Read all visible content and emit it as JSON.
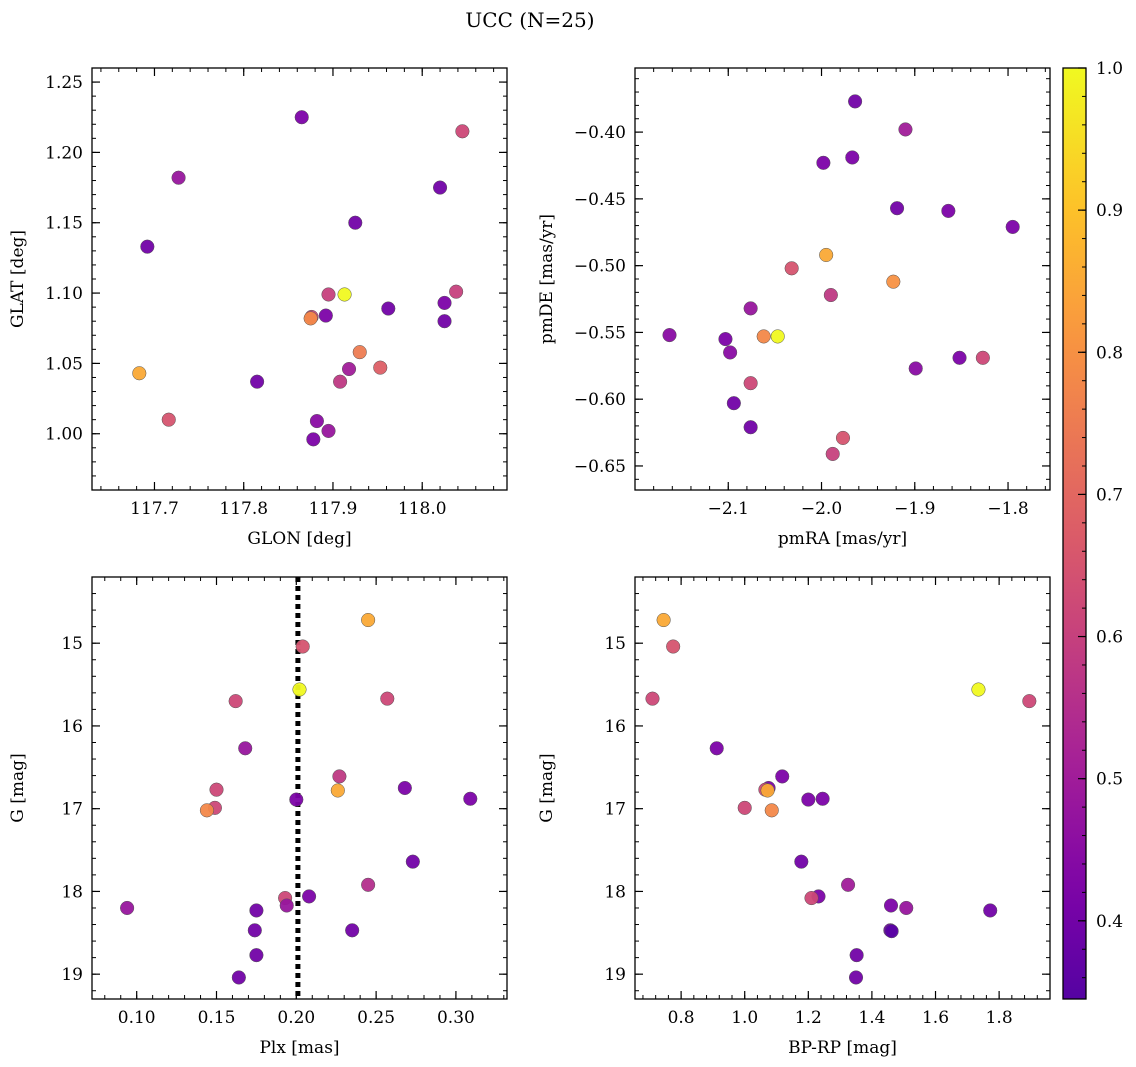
{
  "figure": {
    "title": "UCC (N=25)",
    "colormap": "plasma",
    "colorbar": {
      "range": [
        0.345,
        1.0
      ],
      "ticks": [
        0.4,
        0.5,
        0.6,
        0.7,
        0.8,
        0.9,
        1.0
      ],
      "tick_labels": [
        "0.4",
        "0.5",
        "0.6",
        "0.7",
        "0.8",
        "0.9",
        "1.0"
      ]
    }
  },
  "chart_data": [
    {
      "type": "scatter",
      "xlabel": "GLON [deg]",
      "ylabel": "GLAT [deg]",
      "xlim": [
        117.63,
        118.095
      ],
      "ylim": [
        0.96,
        1.26
      ],
      "y_inverted": false,
      "xticks": [
        117.7,
        117.8,
        117.9,
        118.0
      ],
      "xtick_labels": [
        "117.7",
        "117.8",
        "117.9",
        "118.0"
      ],
      "yticks": [
        1.0,
        1.05,
        1.1,
        1.15,
        1.2,
        1.25
      ],
      "ytick_labels": [
        "1.00",
        "1.05",
        "1.10",
        "1.15",
        "1.20",
        "1.25"
      ],
      "points": [
        {
          "x": 117.865,
          "y": 1.225,
          "c": 0.42
        },
        {
          "x": 118.045,
          "y": 1.215,
          "c": 0.62
        },
        {
          "x": 117.727,
          "y": 1.182,
          "c": 0.48
        },
        {
          "x": 118.02,
          "y": 1.175,
          "c": 0.4
        },
        {
          "x": 117.925,
          "y": 1.15,
          "c": 0.4
        },
        {
          "x": 117.692,
          "y": 1.133,
          "c": 0.4
        },
        {
          "x": 117.895,
          "y": 1.099,
          "c": 0.6
        },
        {
          "x": 117.913,
          "y": 1.099,
          "c": 1.0
        },
        {
          "x": 118.038,
          "y": 1.101,
          "c": 0.6
        },
        {
          "x": 118.025,
          "y": 1.093,
          "c": 0.42
        },
        {
          "x": 117.962,
          "y": 1.089,
          "c": 0.4
        },
        {
          "x": 117.892,
          "y": 1.084,
          "c": 0.42
        },
        {
          "x": 117.876,
          "y": 1.083,
          "c": 0.62
        },
        {
          "x": 117.875,
          "y": 1.082,
          "c": 0.78
        },
        {
          "x": 118.025,
          "y": 1.08,
          "c": 0.4
        },
        {
          "x": 117.93,
          "y": 1.058,
          "c": 0.75
        },
        {
          "x": 117.918,
          "y": 1.046,
          "c": 0.5
        },
        {
          "x": 117.953,
          "y": 1.047,
          "c": 0.68
        },
        {
          "x": 117.683,
          "y": 1.043,
          "c": 0.85
        },
        {
          "x": 117.908,
          "y": 1.037,
          "c": 0.58
        },
        {
          "x": 117.815,
          "y": 1.037,
          "c": 0.4
        },
        {
          "x": 117.716,
          "y": 1.01,
          "c": 0.65
        },
        {
          "x": 117.882,
          "y": 1.009,
          "c": 0.45
        },
        {
          "x": 117.895,
          "y": 1.002,
          "c": 0.48
        },
        {
          "x": 117.878,
          "y": 0.996,
          "c": 0.42
        }
      ]
    },
    {
      "type": "scatter",
      "xlabel": "pmRA [mas/yr]",
      "ylabel": "pmDE [mas/yr]",
      "xlim": [
        -2.2,
        -1.755
      ],
      "ylim": [
        -0.668,
        -0.352
      ],
      "y_inverted": false,
      "xticks": [
        -2.1,
        -2.0,
        -1.9,
        -1.8
      ],
      "xtick_labels": [
        "−2.1",
        "−2.0",
        "−1.9",
        "−1.8"
      ],
      "yticks": [
        -0.65,
        -0.6,
        -0.55,
        -0.5,
        -0.45,
        -0.4
      ],
      "ytick_labels": [
        "−0.65",
        "−0.60",
        "−0.55",
        "−0.50",
        "−0.45",
        "−0.40"
      ],
      "points": [
        {
          "x": -1.964,
          "y": -0.377,
          "c": 0.4
        },
        {
          "x": -1.91,
          "y": -0.398,
          "c": 0.5
        },
        {
          "x": -1.998,
          "y": -0.423,
          "c": 0.42
        },
        {
          "x": -1.967,
          "y": -0.419,
          "c": 0.42
        },
        {
          "x": -1.919,
          "y": -0.457,
          "c": 0.4
        },
        {
          "x": -1.864,
          "y": -0.459,
          "c": 0.42
        },
        {
          "x": -1.795,
          "y": -0.471,
          "c": 0.42
        },
        {
          "x": -1.995,
          "y": -0.492,
          "c": 0.85
        },
        {
          "x": -2.032,
          "y": -0.502,
          "c": 0.65
        },
        {
          "x": -1.923,
          "y": -0.512,
          "c": 0.8
        },
        {
          "x": -1.99,
          "y": -0.522,
          "c": 0.58
        },
        {
          "x": -2.076,
          "y": -0.532,
          "c": 0.48
        },
        {
          "x": -2.163,
          "y": -0.552,
          "c": 0.45
        },
        {
          "x": -2.103,
          "y": -0.555,
          "c": 0.42
        },
        {
          "x": -2.062,
          "y": -0.553,
          "c": 0.78
        },
        {
          "x": -2.047,
          "y": -0.553,
          "c": 1.0
        },
        {
          "x": -2.098,
          "y": -0.565,
          "c": 0.45
        },
        {
          "x": -1.852,
          "y": -0.569,
          "c": 0.42
        },
        {
          "x": -1.827,
          "y": -0.569,
          "c": 0.62
        },
        {
          "x": -1.899,
          "y": -0.577,
          "c": 0.45
        },
        {
          "x": -2.076,
          "y": -0.588,
          "c": 0.62
        },
        {
          "x": -2.094,
          "y": -0.603,
          "c": 0.4
        },
        {
          "x": -2.076,
          "y": -0.621,
          "c": 0.4
        },
        {
          "x": -1.977,
          "y": -0.629,
          "c": 0.65
        },
        {
          "x": -1.988,
          "y": -0.641,
          "c": 0.6
        }
      ]
    },
    {
      "type": "scatter",
      "xlabel": "Plx [mas]",
      "ylabel": "G [mag]",
      "xlim": [
        0.072,
        0.332
      ],
      "ylim": [
        14.2,
        19.3
      ],
      "y_inverted": true,
      "vline": {
        "x": 0.201,
        "style": "dotted"
      },
      "xticks": [
        0.1,
        0.15,
        0.2,
        0.25,
        0.3
      ],
      "xtick_labels": [
        "0.10",
        "0.15",
        "0.20",
        "0.25",
        "0.30"
      ],
      "yticks": [
        15,
        16,
        17,
        18,
        19
      ],
      "ytick_labels": [
        "15",
        "16",
        "17",
        "18",
        "19"
      ],
      "points": [
        {
          "x": 0.245,
          "y": 14.72,
          "c": 0.85
        },
        {
          "x": 0.204,
          "y": 15.04,
          "c": 0.65
        },
        {
          "x": 0.202,
          "y": 15.56,
          "c": 1.0
        },
        {
          "x": 0.162,
          "y": 15.7,
          "c": 0.62
        },
        {
          "x": 0.257,
          "y": 15.67,
          "c": 0.62
        },
        {
          "x": 0.168,
          "y": 16.27,
          "c": 0.48
        },
        {
          "x": 0.227,
          "y": 16.61,
          "c": 0.58
        },
        {
          "x": 0.268,
          "y": 16.75,
          "c": 0.42
        },
        {
          "x": 0.15,
          "y": 16.77,
          "c": 0.62
        },
        {
          "x": 0.226,
          "y": 16.78,
          "c": 0.85
        },
        {
          "x": 0.309,
          "y": 16.88,
          "c": 0.42
        },
        {
          "x": 0.2,
          "y": 16.89,
          "c": 0.42
        },
        {
          "x": 0.149,
          "y": 16.99,
          "c": 0.62
        },
        {
          "x": 0.144,
          "y": 17.02,
          "c": 0.78
        },
        {
          "x": 0.273,
          "y": 17.64,
          "c": 0.4
        },
        {
          "x": 0.245,
          "y": 17.92,
          "c": 0.55
        },
        {
          "x": 0.208,
          "y": 18.06,
          "c": 0.42
        },
        {
          "x": 0.193,
          "y": 18.08,
          "c": 0.62
        },
        {
          "x": 0.194,
          "y": 18.17,
          "c": 0.48
        },
        {
          "x": 0.094,
          "y": 18.2,
          "c": 0.48
        },
        {
          "x": 0.175,
          "y": 18.23,
          "c": 0.4
        },
        {
          "x": 0.174,
          "y": 18.47,
          "c": 0.4
        },
        {
          "x": 0.235,
          "y": 18.47,
          "c": 0.4
        },
        {
          "x": 0.175,
          "y": 18.77,
          "c": 0.4
        },
        {
          "x": 0.164,
          "y": 19.04,
          "c": 0.4
        }
      ]
    },
    {
      "type": "scatter",
      "xlabel": "BP-RP [mag]",
      "ylabel": "G [mag]",
      "xlim": [
        0.655,
        1.96
      ],
      "ylim": [
        14.2,
        19.3
      ],
      "y_inverted": true,
      "xticks": [
        0.8,
        1.0,
        1.2,
        1.4,
        1.6,
        1.8
      ],
      "xtick_labels": [
        "0.8",
        "1.0",
        "1.2",
        "1.4",
        "1.6",
        "1.8"
      ],
      "yticks": [
        15,
        16,
        17,
        18,
        19
      ],
      "ytick_labels": [
        "15",
        "16",
        "17",
        "18",
        "19"
      ],
      "points": [
        {
          "x": 0.745,
          "y": 14.72,
          "c": 0.85
        },
        {
          "x": 0.775,
          "y": 15.04,
          "c": 0.65
        },
        {
          "x": 1.735,
          "y": 15.56,
          "c": 1.0
        },
        {
          "x": 0.71,
          "y": 15.67,
          "c": 0.62
        },
        {
          "x": 1.895,
          "y": 15.7,
          "c": 0.62
        },
        {
          "x": 0.912,
          "y": 16.27,
          "c": 0.42
        },
        {
          "x": 1.118,
          "y": 16.61,
          "c": 0.42
        },
        {
          "x": 1.075,
          "y": 16.75,
          "c": 0.42
        },
        {
          "x": 1.065,
          "y": 16.77,
          "c": 0.62
        },
        {
          "x": 1.072,
          "y": 16.78,
          "c": 0.85
        },
        {
          "x": 1.245,
          "y": 16.88,
          "c": 0.42
        },
        {
          "x": 1.2,
          "y": 16.89,
          "c": 0.42
        },
        {
          "x": 1.0,
          "y": 16.99,
          "c": 0.62
        },
        {
          "x": 1.085,
          "y": 17.02,
          "c": 0.78
        },
        {
          "x": 1.178,
          "y": 17.64,
          "c": 0.4
        },
        {
          "x": 1.325,
          "y": 17.92,
          "c": 0.5
        },
        {
          "x": 1.232,
          "y": 18.06,
          "c": 0.42
        },
        {
          "x": 1.21,
          "y": 18.08,
          "c": 0.62
        },
        {
          "x": 1.46,
          "y": 18.17,
          "c": 0.42
        },
        {
          "x": 1.508,
          "y": 18.2,
          "c": 0.48
        },
        {
          "x": 1.772,
          "y": 18.23,
          "c": 0.4
        },
        {
          "x": 1.458,
          "y": 18.47,
          "c": 0.4
        },
        {
          "x": 1.462,
          "y": 18.48,
          "c": 0.35
        },
        {
          "x": 1.352,
          "y": 18.77,
          "c": 0.4
        },
        {
          "x": 1.35,
          "y": 19.04,
          "c": 0.4
        }
      ]
    }
  ]
}
